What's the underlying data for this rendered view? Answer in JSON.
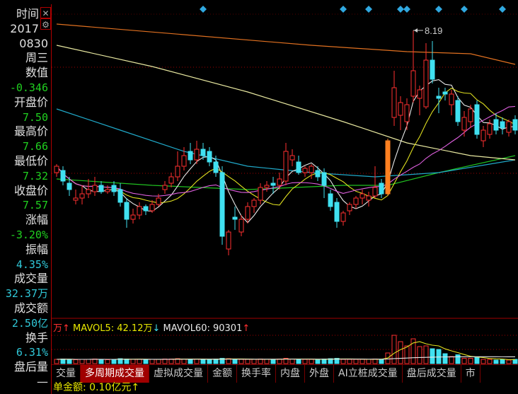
{
  "info_panel": {
    "rows": [
      {
        "label": "时间",
        "value": "2017"
      },
      {
        "label": "",
        "value": "0830"
      },
      {
        "label": "周三",
        "value": ""
      },
      {
        "label": "数值",
        "value": "-0.346"
      },
      {
        "label": "开盘价",
        "value": "7.50"
      },
      {
        "label": "最高价",
        "value": "7.66"
      },
      {
        "label": "最低价",
        "value": "7.32"
      },
      {
        "label": "收盘价",
        "value": "7.57"
      },
      {
        "label": "涨幅",
        "value": "-3.20%"
      },
      {
        "label": "振幅",
        "value": "4.35%"
      },
      {
        "label": "成交量",
        "value": "32.37万"
      },
      {
        "label": "成交额",
        "value": "2.50亿"
      },
      {
        "label": "换手",
        "value": "6.31%"
      },
      {
        "label": "盘后量",
        "value": "—"
      }
    ],
    "close_icon": "close-icon",
    "settings_icon": "gear-icon"
  },
  "volume_legend": {
    "prev_cut": "万↑",
    "mavol5": "MAVOL5: 42.12万",
    "mavol5_arrow": "↓",
    "mavol60": "MAVOL60: 90301",
    "mavol60_arrow": "↑"
  },
  "tabs": [
    "交量",
    "多周期成交量",
    "虚拟成交量",
    "金额",
    "换手率",
    "内盘",
    "外盘",
    "AI立桩成交量",
    "盘后成交量",
    "市"
  ],
  "active_tab": 1,
  "bottom_text": "单金额: 0.10亿元↑",
  "colors": {
    "up": "#ff3030",
    "down": "#40e0f0",
    "highlight": "#ff8020",
    "ma5": "#e8e8e8",
    "ma10": "#e0e020",
    "ma20": "#e060e0",
    "ma_green": "#20c020",
    "ma_cyan": "#20a8c8",
    "ma_pale": "#e8e8a0",
    "ma_orange": "#e07020",
    "grid": "#a00000",
    "marker": "#30a8e0"
  },
  "chart_data": {
    "type": "candlestick",
    "max_label": "8.19",
    "highlight_index": 52,
    "candles_ohlc": [
      [
        7.52,
        7.56,
        7.5,
        7.55
      ],
      [
        7.53,
        7.55,
        7.46,
        7.48
      ],
      [
        7.47,
        7.5,
        7.41,
        7.44
      ],
      [
        7.39,
        7.44,
        7.37,
        7.4
      ],
      [
        7.4,
        7.46,
        7.37,
        7.42
      ],
      [
        7.42,
        7.49,
        7.4,
        7.44
      ],
      [
        7.43,
        7.5,
        7.41,
        7.46
      ],
      [
        7.46,
        7.48,
        7.42,
        7.43
      ],
      [
        7.43,
        7.46,
        7.42,
        7.44
      ],
      [
        7.46,
        7.48,
        7.41,
        7.43
      ],
      [
        7.44,
        7.47,
        7.36,
        7.38
      ],
      [
        7.38,
        7.4,
        7.26,
        7.3
      ],
      [
        7.3,
        7.35,
        7.28,
        7.32
      ],
      [
        7.32,
        7.38,
        7.3,
        7.36
      ],
      [
        7.36,
        7.37,
        7.32,
        7.34
      ],
      [
        7.34,
        7.39,
        7.33,
        7.37
      ],
      [
        7.37,
        7.42,
        7.36,
        7.4
      ],
      [
        7.44,
        7.48,
        7.42,
        7.46
      ],
      [
        7.47,
        7.52,
        7.45,
        7.5
      ],
      [
        7.5,
        7.62,
        7.48,
        7.55
      ],
      [
        7.55,
        7.64,
        7.53,
        7.6
      ],
      [
        7.62,
        7.66,
        7.56,
        7.58
      ],
      [
        7.58,
        7.67,
        7.56,
        7.63
      ],
      [
        7.63,
        7.66,
        7.58,
        7.6
      ],
      [
        7.62,
        7.64,
        7.55,
        7.57
      ],
      [
        7.57,
        7.6,
        7.5,
        7.52
      ],
      [
        7.52,
        7.55,
        7.18,
        7.22
      ],
      [
        7.16,
        7.25,
        7.13,
        7.24
      ],
      [
        7.31,
        7.36,
        7.25,
        7.3
      ],
      [
        7.24,
        7.32,
        7.22,
        7.3
      ],
      [
        7.3,
        7.38,
        7.28,
        7.36
      ],
      [
        7.36,
        7.4,
        7.33,
        7.39
      ],
      [
        7.39,
        7.47,
        7.37,
        7.45
      ],
      [
        7.45,
        7.48,
        7.43,
        7.46
      ],
      [
        7.47,
        7.5,
        7.42,
        7.46
      ],
      [
        7.46,
        7.52,
        7.44,
        7.49
      ],
      [
        7.48,
        7.66,
        7.46,
        7.62
      ],
      [
        7.58,
        7.63,
        7.55,
        7.6
      ],
      [
        7.57,
        7.6,
        7.51,
        7.52
      ],
      [
        7.52,
        7.55,
        7.5,
        7.54
      ],
      [
        7.52,
        7.56,
        7.49,
        7.55
      ],
      [
        7.53,
        7.55,
        7.48,
        7.5
      ],
      [
        7.52,
        7.54,
        7.4,
        7.46
      ],
      [
        7.42,
        7.44,
        7.34,
        7.36
      ],
      [
        7.38,
        7.4,
        7.26,
        7.29
      ],
      [
        7.29,
        7.34,
        7.27,
        7.33
      ],
      [
        7.34,
        7.38,
        7.32,
        7.37
      ],
      [
        7.37,
        7.41,
        7.35,
        7.4
      ],
      [
        7.4,
        7.44,
        7.37,
        7.42
      ],
      [
        7.39,
        7.43,
        7.36,
        7.41
      ],
      [
        7.41,
        7.55,
        7.4,
        7.45
      ],
      [
        7.47,
        7.49,
        7.4,
        7.42
      ],
      [
        7.42,
        7.68,
        7.41,
        7.67
      ],
      [
        7.78,
        8.0,
        7.74,
        7.92
      ],
      [
        7.79,
        7.88,
        7.72,
        7.85
      ],
      [
        7.76,
        7.87,
        7.72,
        7.84
      ],
      [
        7.88,
        8.19,
        7.85,
        8.0
      ],
      [
        7.87,
        7.93,
        7.79,
        7.91
      ],
      [
        7.83,
        8.13,
        7.82,
        8.05
      ],
      [
        8.05,
        8.14,
        7.94,
        7.96
      ],
      [
        7.88,
        7.92,
        7.8,
        7.87
      ],
      [
        7.9,
        7.92,
        7.86,
        7.89
      ],
      [
        7.84,
        7.91,
        7.79,
        7.89
      ],
      [
        7.86,
        7.88,
        7.74,
        7.76
      ],
      [
        7.72,
        7.81,
        7.69,
        7.78
      ],
      [
        7.76,
        7.84,
        7.73,
        7.82
      ],
      [
        7.84,
        7.86,
        7.68,
        7.7
      ],
      [
        7.67,
        7.74,
        7.64,
        7.72
      ],
      [
        7.7,
        7.77,
        7.68,
        7.75
      ],
      [
        7.77,
        7.8,
        7.7,
        7.72
      ],
      [
        7.76,
        7.78,
        7.7,
        7.73
      ],
      [
        7.71,
        7.77,
        7.69,
        7.76
      ],
      [
        7.77,
        7.79,
        7.7,
        7.72
      ]
    ],
    "volume_wan": [
      12,
      13,
      12,
      11,
      12,
      12,
      13,
      12,
      11,
      12,
      14,
      13,
      12,
      12,
      11,
      12,
      12,
      13,
      13,
      14,
      13,
      12,
      13,
      12,
      12,
      13,
      15,
      14,
      12,
      12,
      12,
      12,
      13,
      12,
      12,
      13,
      15,
      13,
      12,
      12,
      12,
      12,
      13,
      14,
      15,
      12,
      12,
      12,
      12,
      12,
      13,
      12,
      30,
      80,
      62,
      50,
      70,
      48,
      50,
      42,
      40,
      28,
      20,
      25,
      15,
      15,
      18,
      12,
      12,
      10,
      12,
      10,
      12
    ],
    "ma_lines_computed": [
      {
        "period": 5,
        "color_key": "ma5"
      },
      {
        "period": 10,
        "color_key": "ma10"
      },
      {
        "period": 20,
        "color_key": "ma20"
      }
    ],
    "ma_lines_long": [
      {
        "color_key": "ma_green",
        "points": [
          [
            0,
            7.49
          ],
          [
            15,
            7.46
          ],
          [
            30,
            7.44
          ],
          [
            45,
            7.46
          ],
          [
            52,
            7.46
          ],
          [
            60,
            7.52
          ],
          [
            72,
            7.6
          ]
        ]
      },
      {
        "color_key": "ma_cyan",
        "points": [
          [
            0,
            7.82
          ],
          [
            10,
            7.72
          ],
          [
            20,
            7.62
          ],
          [
            30,
            7.55
          ],
          [
            40,
            7.52
          ],
          [
            50,
            7.5
          ],
          [
            60,
            7.52
          ],
          [
            72,
            7.58
          ]
        ]
      },
      {
        "color_key": "ma_pale",
        "points": [
          [
            0,
            8.12
          ],
          [
            15,
            8.02
          ],
          [
            30,
            7.9
          ],
          [
            45,
            7.76
          ],
          [
            55,
            7.66
          ],
          [
            65,
            7.6
          ],
          [
            72,
            7.58
          ]
        ]
      },
      {
        "color_key": "ma_orange",
        "points": [
          [
            0,
            8.22
          ],
          [
            20,
            8.17
          ],
          [
            40,
            8.12
          ],
          [
            55,
            8.09
          ],
          [
            65,
            8.08
          ],
          [
            72,
            8.03
          ]
        ]
      }
    ],
    "event_marker_indices": [
      23,
      45,
      49,
      54,
      55,
      60,
      64,
      70
    ],
    "price_range": [
      7.05,
      8.25
    ],
    "volume_range": [
      0,
      90
    ]
  }
}
